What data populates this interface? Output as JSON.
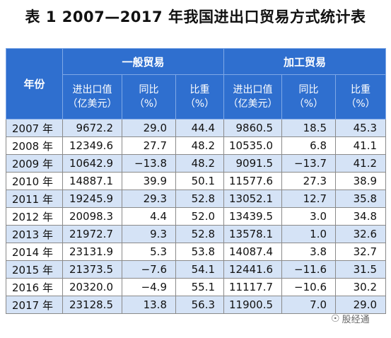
{
  "title": "表 1  2007—2017 年我国进出口贸易方式统计表",
  "header": {
    "year_label": "年份",
    "groups": [
      "一般贸易",
      "加工贸易"
    ],
    "columns": [
      [
        "进出口值",
        "（亿美元）"
      ],
      [
        "同比",
        "（%）"
      ],
      [
        "比重",
        "（%）"
      ],
      [
        "进出口值",
        "（亿美元）"
      ],
      [
        "同比",
        "（%）"
      ],
      [
        "比重",
        "（%）"
      ]
    ]
  },
  "rows": [
    [
      "2007 年",
      "9672.2",
      "29.0",
      "44.4",
      "9860.5",
      "18.5",
      "45.3"
    ],
    [
      "2008 年",
      "12349.6",
      "27.7",
      "48.2",
      "10535.0",
      "6.8",
      "41.1"
    ],
    [
      "2009 年",
      "10642.9",
      "−13.8",
      "48.2",
      "9091.5",
      "−13.7",
      "41.2"
    ],
    [
      "2010 年",
      "14887.1",
      "39.9",
      "50.1",
      "11577.6",
      "27.3",
      "38.9"
    ],
    [
      "2011 年",
      "19245.9",
      "29.3",
      "52.8",
      "13052.1",
      "12.7",
      "35.8"
    ],
    [
      "2012 年",
      "20098.3",
      "4.4",
      "52.0",
      "13439.5",
      "3.0",
      "34.8"
    ],
    [
      "2013 年",
      "21972.7",
      "9.3",
      "52.8",
      "13578.1",
      "1.0",
      "32.6"
    ],
    [
      "2014 年",
      "23131.9",
      "5.3",
      "53.8",
      "14087.4",
      "3.8",
      "32.7"
    ],
    [
      "2015 年",
      "21373.5",
      "−7.6",
      "54.1",
      "12441.6",
      "−11.6",
      "31.5"
    ],
    [
      "2016 年",
      "20320.0",
      "−4.9",
      "55.1",
      "11117.7",
      "−10.6",
      "30.2"
    ],
    [
      "2017 年",
      "23128.5",
      "13.8",
      "56.3",
      "11900.5",
      "7.0",
      "29.0"
    ]
  ],
  "watermark": {
    "text": "股经通",
    "icon": "wechat-icon"
  },
  "colors": {
    "header_bg": "#2f6fcf",
    "stripe": "#d5e3f6"
  }
}
